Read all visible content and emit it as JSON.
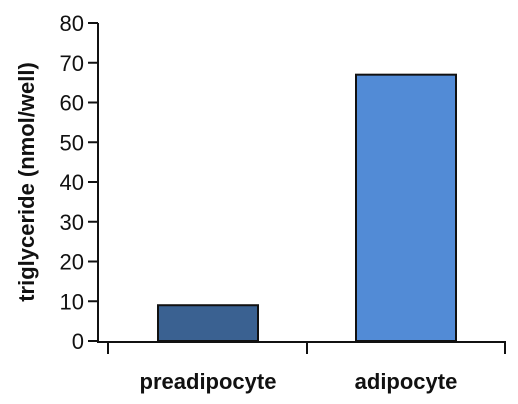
{
  "chart_data": {
    "type": "bar",
    "title": "",
    "xlabel": "",
    "ylabel": "triglyceride (nmol/well)",
    "categories": [
      "preadipocyte",
      "adipocyte"
    ],
    "values": [
      9,
      67
    ],
    "ylim": [
      0,
      80
    ],
    "yticks": [
      "0",
      "10",
      "20",
      "30",
      "40",
      "50",
      "60",
      "70",
      "80"
    ],
    "bar_colors": [
      "#3a6191",
      "#528bd6"
    ],
    "grid": false,
    "legend": "none"
  }
}
